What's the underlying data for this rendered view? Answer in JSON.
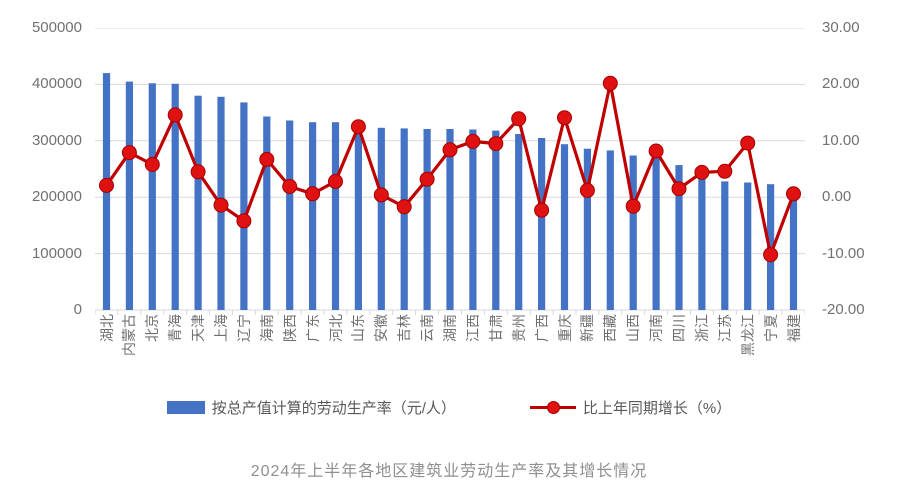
{
  "title": "2024年上半年各地区建筑业劳动生产率及其增长情况",
  "legend": {
    "bar_label": "按总产值计算的劳动生产率（元/人）",
    "line_label": "比上年同期增长（%）"
  },
  "colors": {
    "bar": "#4472C4",
    "line": "#C00000",
    "marker": "#E01111",
    "marker_edge": "#A50000",
    "grid": "#D9D9D9",
    "axis_text": "#717171",
    "category_text": "#6f6f6f",
    "legend_text": "#595959",
    "title_text": "#8f8f8f"
  },
  "left_axis": {
    "ticks": [
      "500000",
      "400000",
      "300000",
      "200000",
      "100000",
      "0"
    ],
    "min": 0,
    "max": 500000
  },
  "right_axis": {
    "ticks": [
      "30.00",
      "20.00",
      "10.00",
      "0.00",
      "-10.00",
      "-20.00"
    ],
    "min": -20,
    "max": 30
  },
  "chart_data": {
    "type": "bar",
    "subtype": "bar-line-combo",
    "title": "2024年上半年各地区建筑业劳动生产率及其增长情况",
    "grid": true,
    "legend_position": "bottom",
    "left_ylim": [
      0,
      500000
    ],
    "right_ylim": [
      -20,
      30
    ],
    "categories": [
      "湖北",
      "内蒙古",
      "北京",
      "青海",
      "天津",
      "上海",
      "辽宁",
      "海南",
      "陕西",
      "广东",
      "河北",
      "山东",
      "安徽",
      "吉林",
      "云南",
      "湖南",
      "江西",
      "甘肃",
      "贵州",
      "广西",
      "重庆",
      "新疆",
      "西藏",
      "山西",
      "河南",
      "四川",
      "浙江",
      "江苏",
      "黑龙江",
      "宁夏",
      "福建"
    ],
    "series": [
      {
        "name": "按总产值计算的劳动生产率（元/人）",
        "type": "bar",
        "axis": "left",
        "values": [
          420000,
          405000,
          402000,
          401000,
          380000,
          378000,
          368000,
          343000,
          336000,
          333000,
          333000,
          325000,
          323000,
          322000,
          321000,
          321000,
          320000,
          318000,
          312000,
          305000,
          294000,
          286000,
          283000,
          274000,
          271000,
          257000,
          236000,
          228000,
          226000,
          223000,
          205000
        ]
      },
      {
        "name": "比上年同期增长（%）",
        "type": "line",
        "axis": "right",
        "values": [
          2.1,
          7.9,
          5.8,
          14.6,
          4.5,
          -1.4,
          -4.2,
          6.7,
          1.9,
          0.6,
          2.8,
          12.5,
          0.4,
          -1.7,
          3.2,
          8.4,
          9.9,
          9.5,
          13.9,
          -2.3,
          14.1,
          1.2,
          20.2,
          -1.6,
          8.2,
          1.5,
          4.4,
          4.6,
          9.6,
          -10.2,
          0.6
        ]
      }
    ]
  }
}
